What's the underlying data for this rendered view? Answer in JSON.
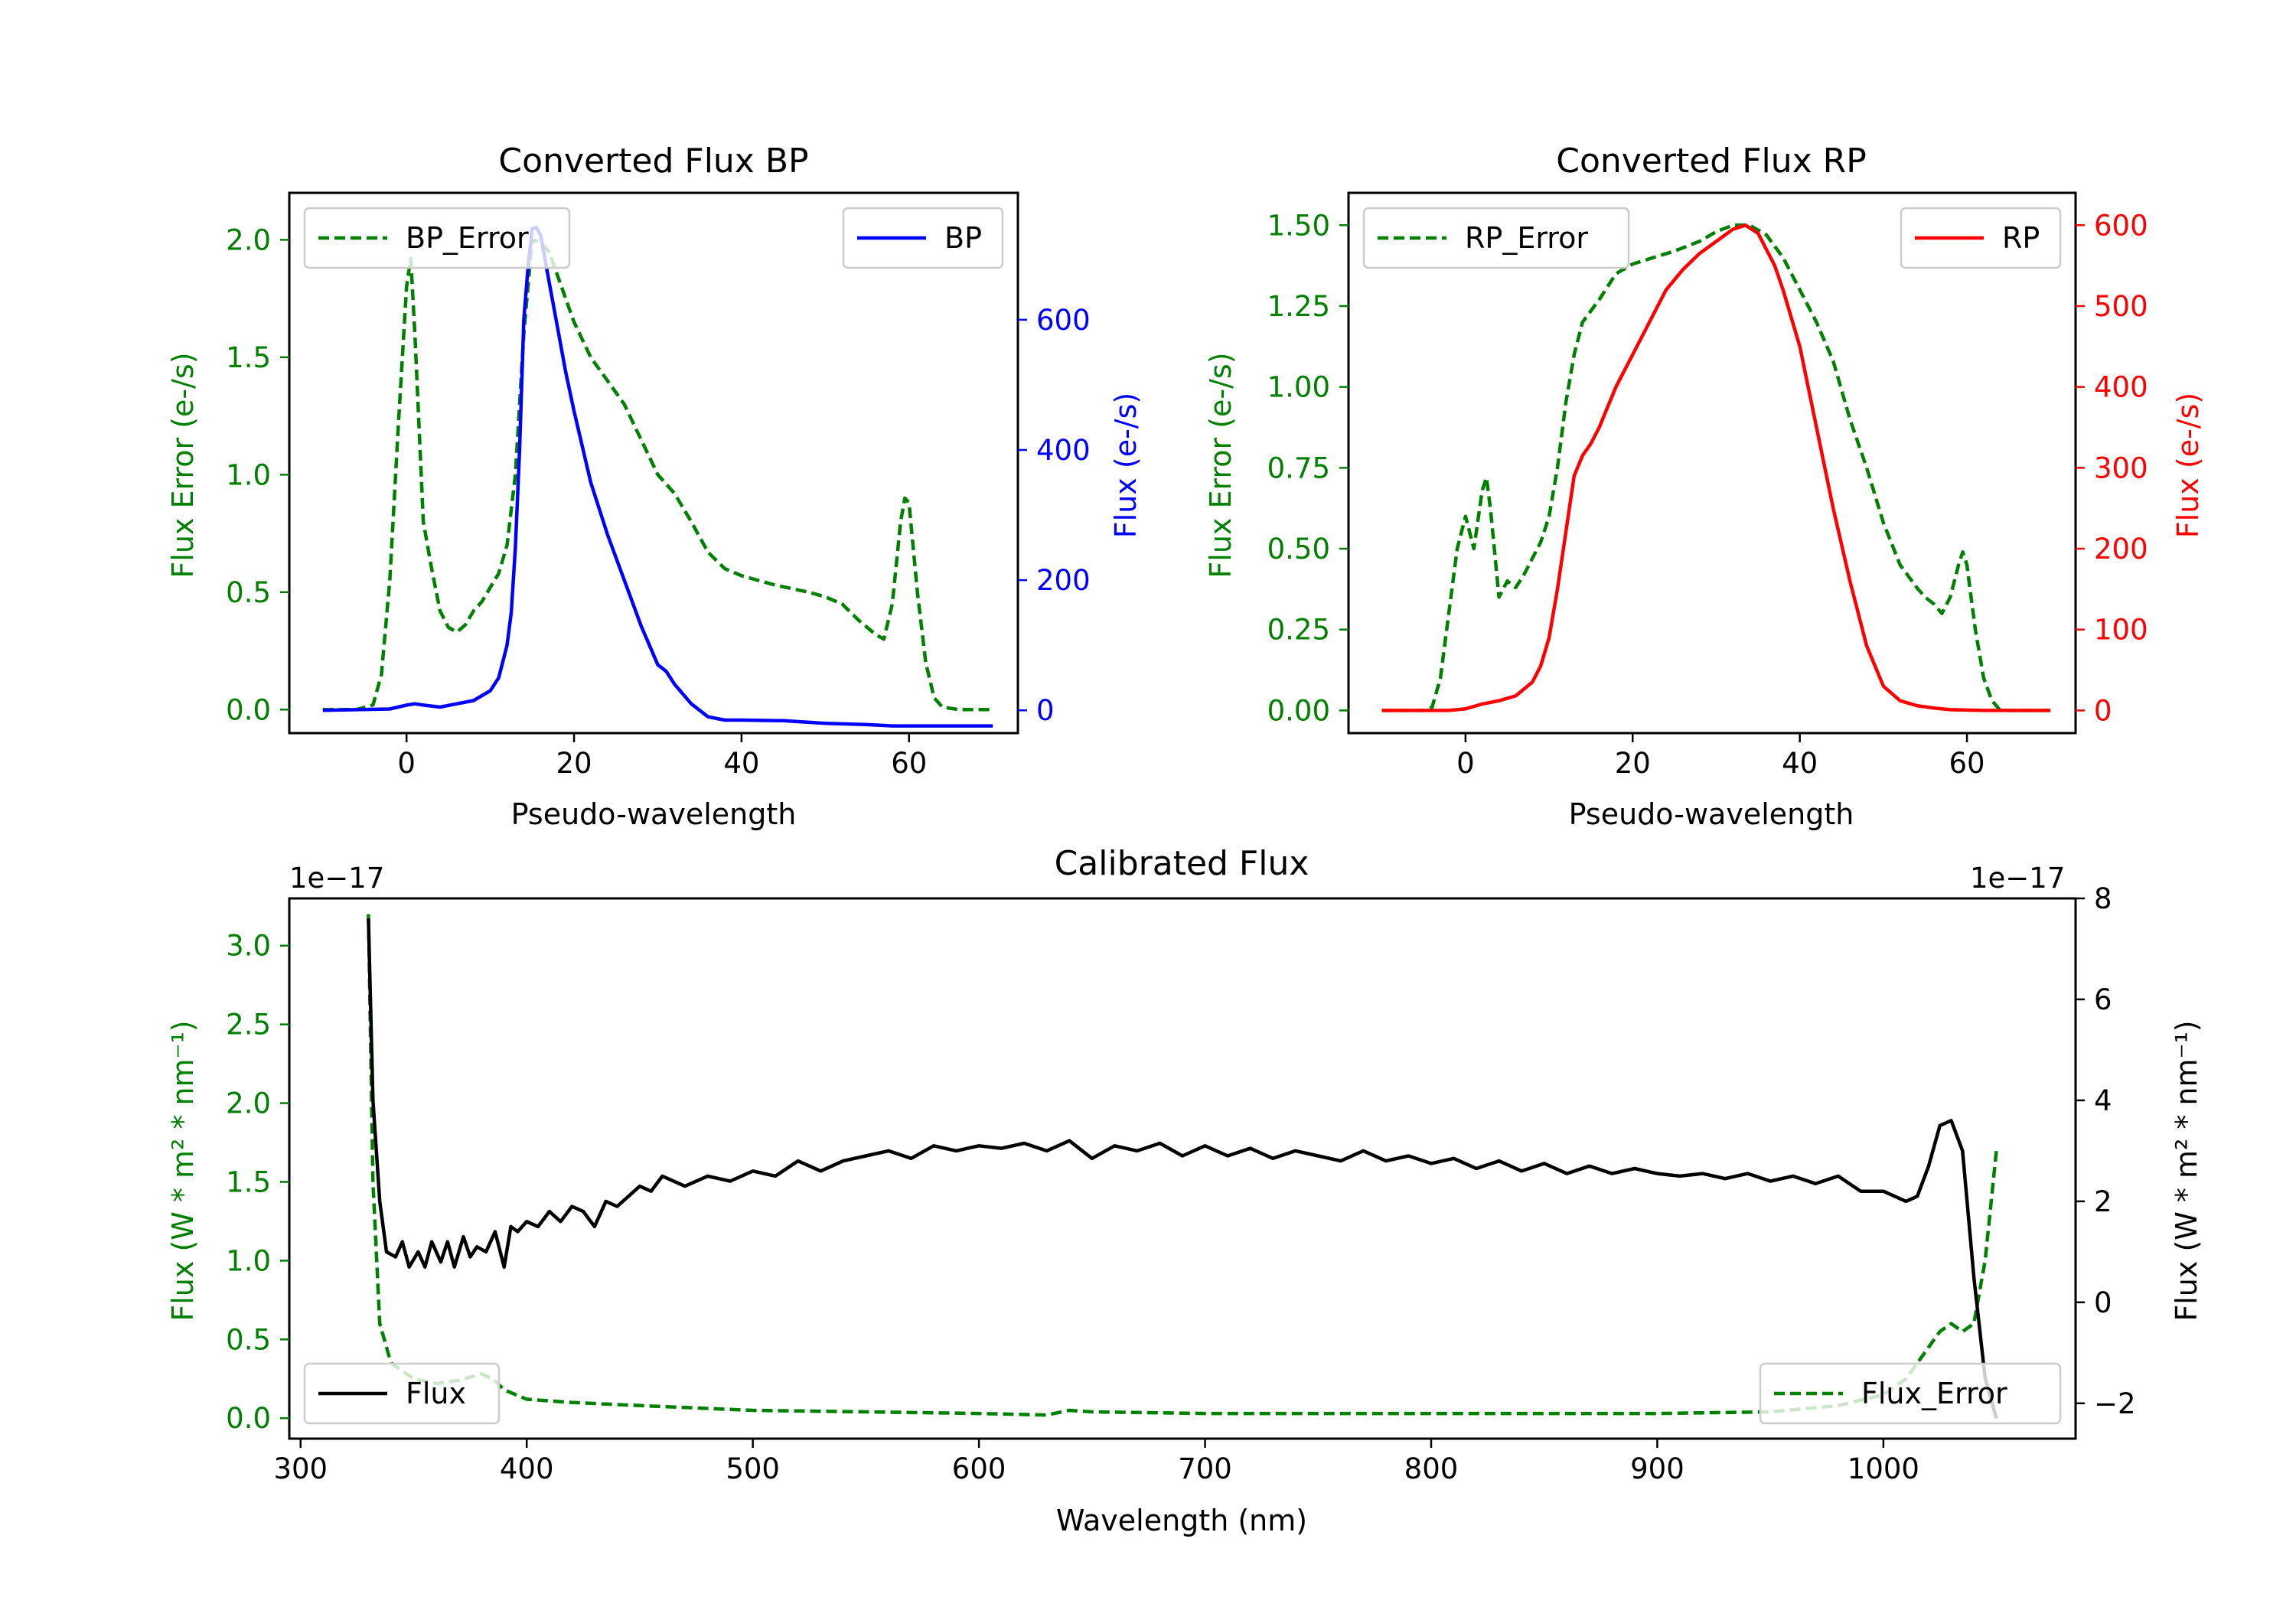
{
  "colors": {
    "green": "#008000",
    "blue": "#0000ff",
    "red": "#ff0000",
    "black": "#000000"
  },
  "chart_data": [
    {
      "type": "line",
      "title": "Converted Flux BP",
      "xlabel": "Pseudo-wavelength",
      "ylabel_left": "Flux Error (e-/s)",
      "ylabel_right": "Flux (e-/s)",
      "xlim": [
        -14,
        73
      ],
      "ylim_left": [
        -0.1,
        2.2
      ],
      "ylim_right": [
        -35,
        795
      ],
      "x_ticks": [
        0,
        20,
        40,
        60
      ],
      "y_ticks_left": [
        "0.0",
        "0.5",
        "1.0",
        "1.5",
        "2.0"
      ],
      "y_ticks_right": [
        "0",
        "200",
        "400",
        "600"
      ],
      "series": [
        {
          "name": "BP_Error",
          "axis": "left",
          "style": "dashed",
          "color": "green",
          "legend": "top-left",
          "x": [
            -10,
            -6,
            -4,
            -3,
            -2,
            -1,
            0,
            0.5,
            1,
            2,
            3,
            4,
            5,
            6,
            7,
            8,
            9,
            10,
            11,
            12,
            13,
            14,
            15,
            16,
            17,
            18,
            19,
            20,
            22,
            24,
            26,
            28,
            30,
            32,
            34,
            36,
            38,
            40,
            44,
            48,
            50,
            52,
            54,
            56,
            57,
            58,
            59,
            59.5,
            60,
            61,
            62,
            63,
            64,
            66,
            70
          ],
          "values": [
            0.0,
            0.0,
            0.02,
            0.15,
            0.55,
            1.2,
            1.8,
            1.92,
            1.6,
            0.8,
            0.6,
            0.42,
            0.35,
            0.33,
            0.36,
            0.42,
            0.46,
            0.52,
            0.58,
            0.7,
            1.0,
            1.6,
            2.0,
            1.99,
            1.95,
            1.85,
            1.75,
            1.65,
            1.5,
            1.4,
            1.3,
            1.15,
            1.0,
            0.92,
            0.8,
            0.67,
            0.6,
            0.57,
            0.53,
            0.5,
            0.48,
            0.45,
            0.38,
            0.32,
            0.3,
            0.45,
            0.8,
            0.9,
            0.88,
            0.5,
            0.2,
            0.05,
            0.01,
            0.0,
            0.0
          ]
        },
        {
          "name": "BP",
          "axis": "right",
          "style": "solid",
          "color": "blue",
          "legend": "top-right",
          "x": [
            -10,
            -2,
            0,
            1,
            2,
            4,
            6,
            8,
            10,
            11,
            12,
            12.5,
            13,
            13.5,
            14,
            14.5,
            15,
            15.5,
            16,
            17,
            18,
            19,
            20,
            22,
            24,
            26,
            28,
            30,
            31,
            32,
            34,
            36,
            38,
            40,
            45,
            50,
            55,
            58,
            60,
            65,
            70
          ],
          "values": [
            0,
            2,
            8,
            10,
            8,
            5,
            10,
            15,
            30,
            50,
            100,
            150,
            250,
            400,
            600,
            680,
            740,
            742,
            730,
            660,
            590,
            520,
            460,
            350,
            270,
            200,
            130,
            70,
            60,
            40,
            10,
            -10,
            -15,
            -15,
            -16,
            -20,
            -22,
            -24,
            -24,
            -24,
            -24
          ]
        }
      ]
    },
    {
      "type": "line",
      "title": "Converted Flux RP",
      "xlabel": "Pseudo-wavelength",
      "ylabel_left": "Flux Error (e-/s)",
      "ylabel_right": "Flux (e-/s)",
      "xlim": [
        -14,
        73
      ],
      "ylim_left": [
        -0.07,
        1.6
      ],
      "ylim_right": [
        -28,
        640
      ],
      "x_ticks": [
        0,
        20,
        40,
        60
      ],
      "y_ticks_left": [
        "0.00",
        "0.25",
        "0.50",
        "0.75",
        "1.00",
        "1.25",
        "1.50"
      ],
      "y_ticks_right": [
        "0",
        "100",
        "200",
        "300",
        "400",
        "500",
        "600"
      ],
      "series": [
        {
          "name": "RP_Error",
          "axis": "left",
          "style": "dashed",
          "color": "green",
          "legend": "top-left",
          "x": [
            -10,
            -5,
            -4,
            -3,
            -2,
            -1,
            0,
            1,
            2,
            2.5,
            3,
            4,
            5,
            6,
            7,
            8,
            9,
            10,
            11,
            12,
            13,
            14,
            16,
            18,
            20,
            25,
            28,
            30,
            32,
            34,
            36,
            38,
            40,
            42,
            44,
            46,
            48,
            50,
            52,
            54,
            55,
            56,
            57,
            58,
            59,
            59.5,
            60,
            61,
            62,
            63,
            64,
            66,
            70
          ],
          "values": [
            0.0,
            0.0,
            0.01,
            0.1,
            0.3,
            0.5,
            0.6,
            0.5,
            0.68,
            0.72,
            0.62,
            0.35,
            0.4,
            0.38,
            0.42,
            0.47,
            0.52,
            0.6,
            0.75,
            0.95,
            1.1,
            1.2,
            1.27,
            1.35,
            1.38,
            1.42,
            1.45,
            1.48,
            1.5,
            1.5,
            1.47,
            1.4,
            1.3,
            1.2,
            1.08,
            0.9,
            0.75,
            0.58,
            0.45,
            0.38,
            0.35,
            0.33,
            0.3,
            0.35,
            0.45,
            0.49,
            0.45,
            0.25,
            0.1,
            0.03,
            0.0,
            0.0,
            0.0
          ]
        },
        {
          "name": "RP",
          "axis": "right",
          "style": "solid",
          "color": "red",
          "legend": "top-right",
          "x": [
            -10,
            -2,
            0,
            2,
            4,
            6,
            8,
            9,
            10,
            11,
            12,
            13,
            14,
            15,
            16,
            18,
            20,
            22,
            24,
            26,
            28,
            30,
            32,
            33.5,
            35,
            37,
            38,
            40,
            42,
            44,
            46,
            48,
            50,
            52,
            54,
            56,
            58,
            62,
            70
          ],
          "values": [
            0,
            0,
            2,
            8,
            12,
            18,
            35,
            55,
            90,
            150,
            220,
            290,
            315,
            330,
            350,
            400,
            440,
            480,
            520,
            545,
            565,
            580,
            595,
            600,
            590,
            550,
            520,
            450,
            350,
            250,
            160,
            80,
            30,
            12,
            6,
            3,
            1,
            0,
            0
          ]
        }
      ]
    },
    {
      "type": "line",
      "title": "Calibrated Flux",
      "xlabel": "Wavelength (nm)",
      "ylabel_left": "Flux (W * m² * nm⁻¹)",
      "ylabel_right": "Flux (W * m² * nm⁻¹)",
      "offset_left": "1e−17",
      "offset_right": "1e−17",
      "xlim": [
        295,
        1085
      ],
      "ylim_left": [
        -0.13,
        3.3
      ],
      "ylim_right": [
        -2.7,
        8.0
      ],
      "x_ticks": [
        300,
        400,
        500,
        600,
        700,
        800,
        900,
        1000
      ],
      "y_ticks_left": [
        "0.0",
        "0.5",
        "1.0",
        "1.5",
        "2.0",
        "2.5",
        "3.0"
      ],
      "y_ticks_right": [
        "−2",
        "0",
        "2",
        "4",
        "6",
        "8"
      ],
      "series": [
        {
          "name": "Flux_Error",
          "axis": "left",
          "style": "dashed",
          "color": "green",
          "legend": "bottom-right",
          "x": [
            330,
            332,
            335,
            340,
            350,
            360,
            370,
            380,
            385,
            390,
            400,
            420,
            450,
            500,
            550,
            600,
            630,
            640,
            650,
            700,
            750,
            800,
            850,
            900,
            950,
            980,
            1000,
            1010,
            1020,
            1025,
            1030,
            1035,
            1040,
            1045,
            1050
          ],
          "values": [
            3.2,
            1.5,
            0.6,
            0.35,
            0.25,
            0.22,
            0.24,
            0.28,
            0.25,
            0.18,
            0.12,
            0.1,
            0.08,
            0.05,
            0.04,
            0.03,
            0.02,
            0.05,
            0.04,
            0.03,
            0.03,
            0.03,
            0.03,
            0.03,
            0.04,
            0.08,
            0.15,
            0.25,
            0.45,
            0.55,
            0.6,
            0.55,
            0.6,
            1.0,
            1.7
          ]
        },
        {
          "name": "Flux",
          "axis": "right",
          "style": "solid",
          "color": "black",
          "legend": "bottom-left",
          "x": [
            330,
            332,
            335,
            338,
            342,
            345,
            348,
            352,
            355,
            358,
            362,
            365,
            368,
            372,
            375,
            378,
            382,
            386,
            390,
            393,
            396,
            400,
            405,
            410,
            415,
            420,
            425,
            430,
            435,
            440,
            445,
            450,
            455,
            460,
            470,
            480,
            490,
            500,
            510,
            520,
            530,
            540,
            550,
            560,
            570,
            580,
            590,
            600,
            610,
            620,
            630,
            640,
            650,
            660,
            670,
            680,
            690,
            700,
            710,
            720,
            730,
            740,
            750,
            760,
            770,
            780,
            790,
            800,
            810,
            820,
            830,
            840,
            850,
            860,
            870,
            880,
            890,
            900,
            910,
            920,
            930,
            940,
            950,
            960,
            970,
            980,
            990,
            1000,
            1010,
            1015,
            1020,
            1025,
            1030,
            1035,
            1040,
            1045,
            1050
          ],
          "values": [
            7.6,
            4.0,
            2.0,
            1.0,
            0.9,
            1.2,
            0.7,
            1.0,
            0.7,
            1.2,
            0.8,
            1.2,
            0.7,
            1.3,
            0.9,
            1.1,
            1.0,
            1.4,
            0.7,
            1.5,
            1.4,
            1.6,
            1.5,
            1.8,
            1.6,
            1.9,
            1.8,
            1.5,
            2.0,
            1.9,
            2.1,
            2.3,
            2.2,
            2.5,
            2.3,
            2.5,
            2.4,
            2.6,
            2.5,
            2.8,
            2.6,
            2.8,
            2.9,
            3.0,
            2.85,
            3.1,
            3.0,
            3.1,
            3.05,
            3.15,
            3.0,
            3.2,
            2.85,
            3.1,
            3.0,
            3.15,
            2.9,
            3.1,
            2.9,
            3.05,
            2.85,
            3.0,
            2.9,
            2.8,
            3.0,
            2.8,
            2.9,
            2.75,
            2.85,
            2.65,
            2.8,
            2.6,
            2.75,
            2.55,
            2.7,
            2.55,
            2.65,
            2.55,
            2.5,
            2.55,
            2.45,
            2.55,
            2.4,
            2.5,
            2.35,
            2.5,
            2.2,
            2.2,
            2.0,
            2.1,
            2.7,
            3.5,
            3.6,
            3.0,
            0.5,
            -1.5,
            -2.3
          ]
        }
      ]
    }
  ]
}
